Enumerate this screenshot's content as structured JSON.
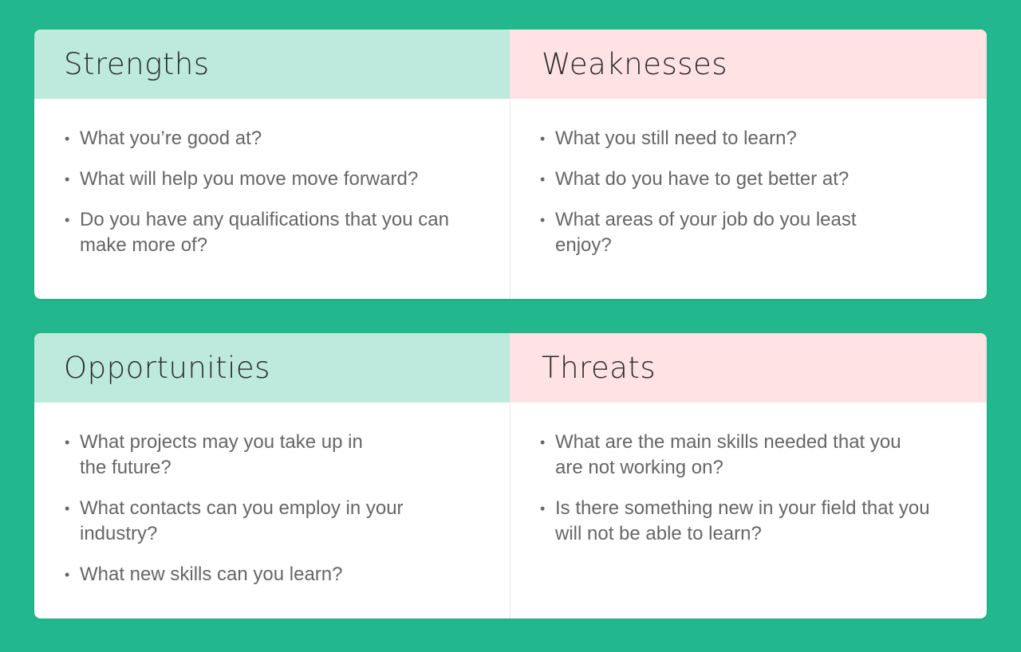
{
  "colors": {
    "background": "#22b78c",
    "positive_header": "#bdeadc",
    "negative_header": "#ffe2e3"
  },
  "strengths": {
    "title": "Strengths",
    "items": [
      "What you’re good at?",
      "What will help you move move forward?",
      "Do you have any qualifications that you can make more of?"
    ]
  },
  "weaknesses": {
    "title": "Weaknesses",
    "items": [
      "What you still need to learn?",
      "What do you have to get better at?",
      "What areas of your job do you least enjoy?"
    ]
  },
  "opportunities": {
    "title": "Opportunities",
    "items": [
      "What projects may you take up in the future?",
      "What contacts can you employ in your industry?",
      "What new skills can you learn?"
    ]
  },
  "threats": {
    "title": "Threats",
    "items": [
      "What are the main skills needed that you are not working on?",
      "Is there something new in your field that you will not be able to learn?"
    ]
  },
  "bullet": "•"
}
